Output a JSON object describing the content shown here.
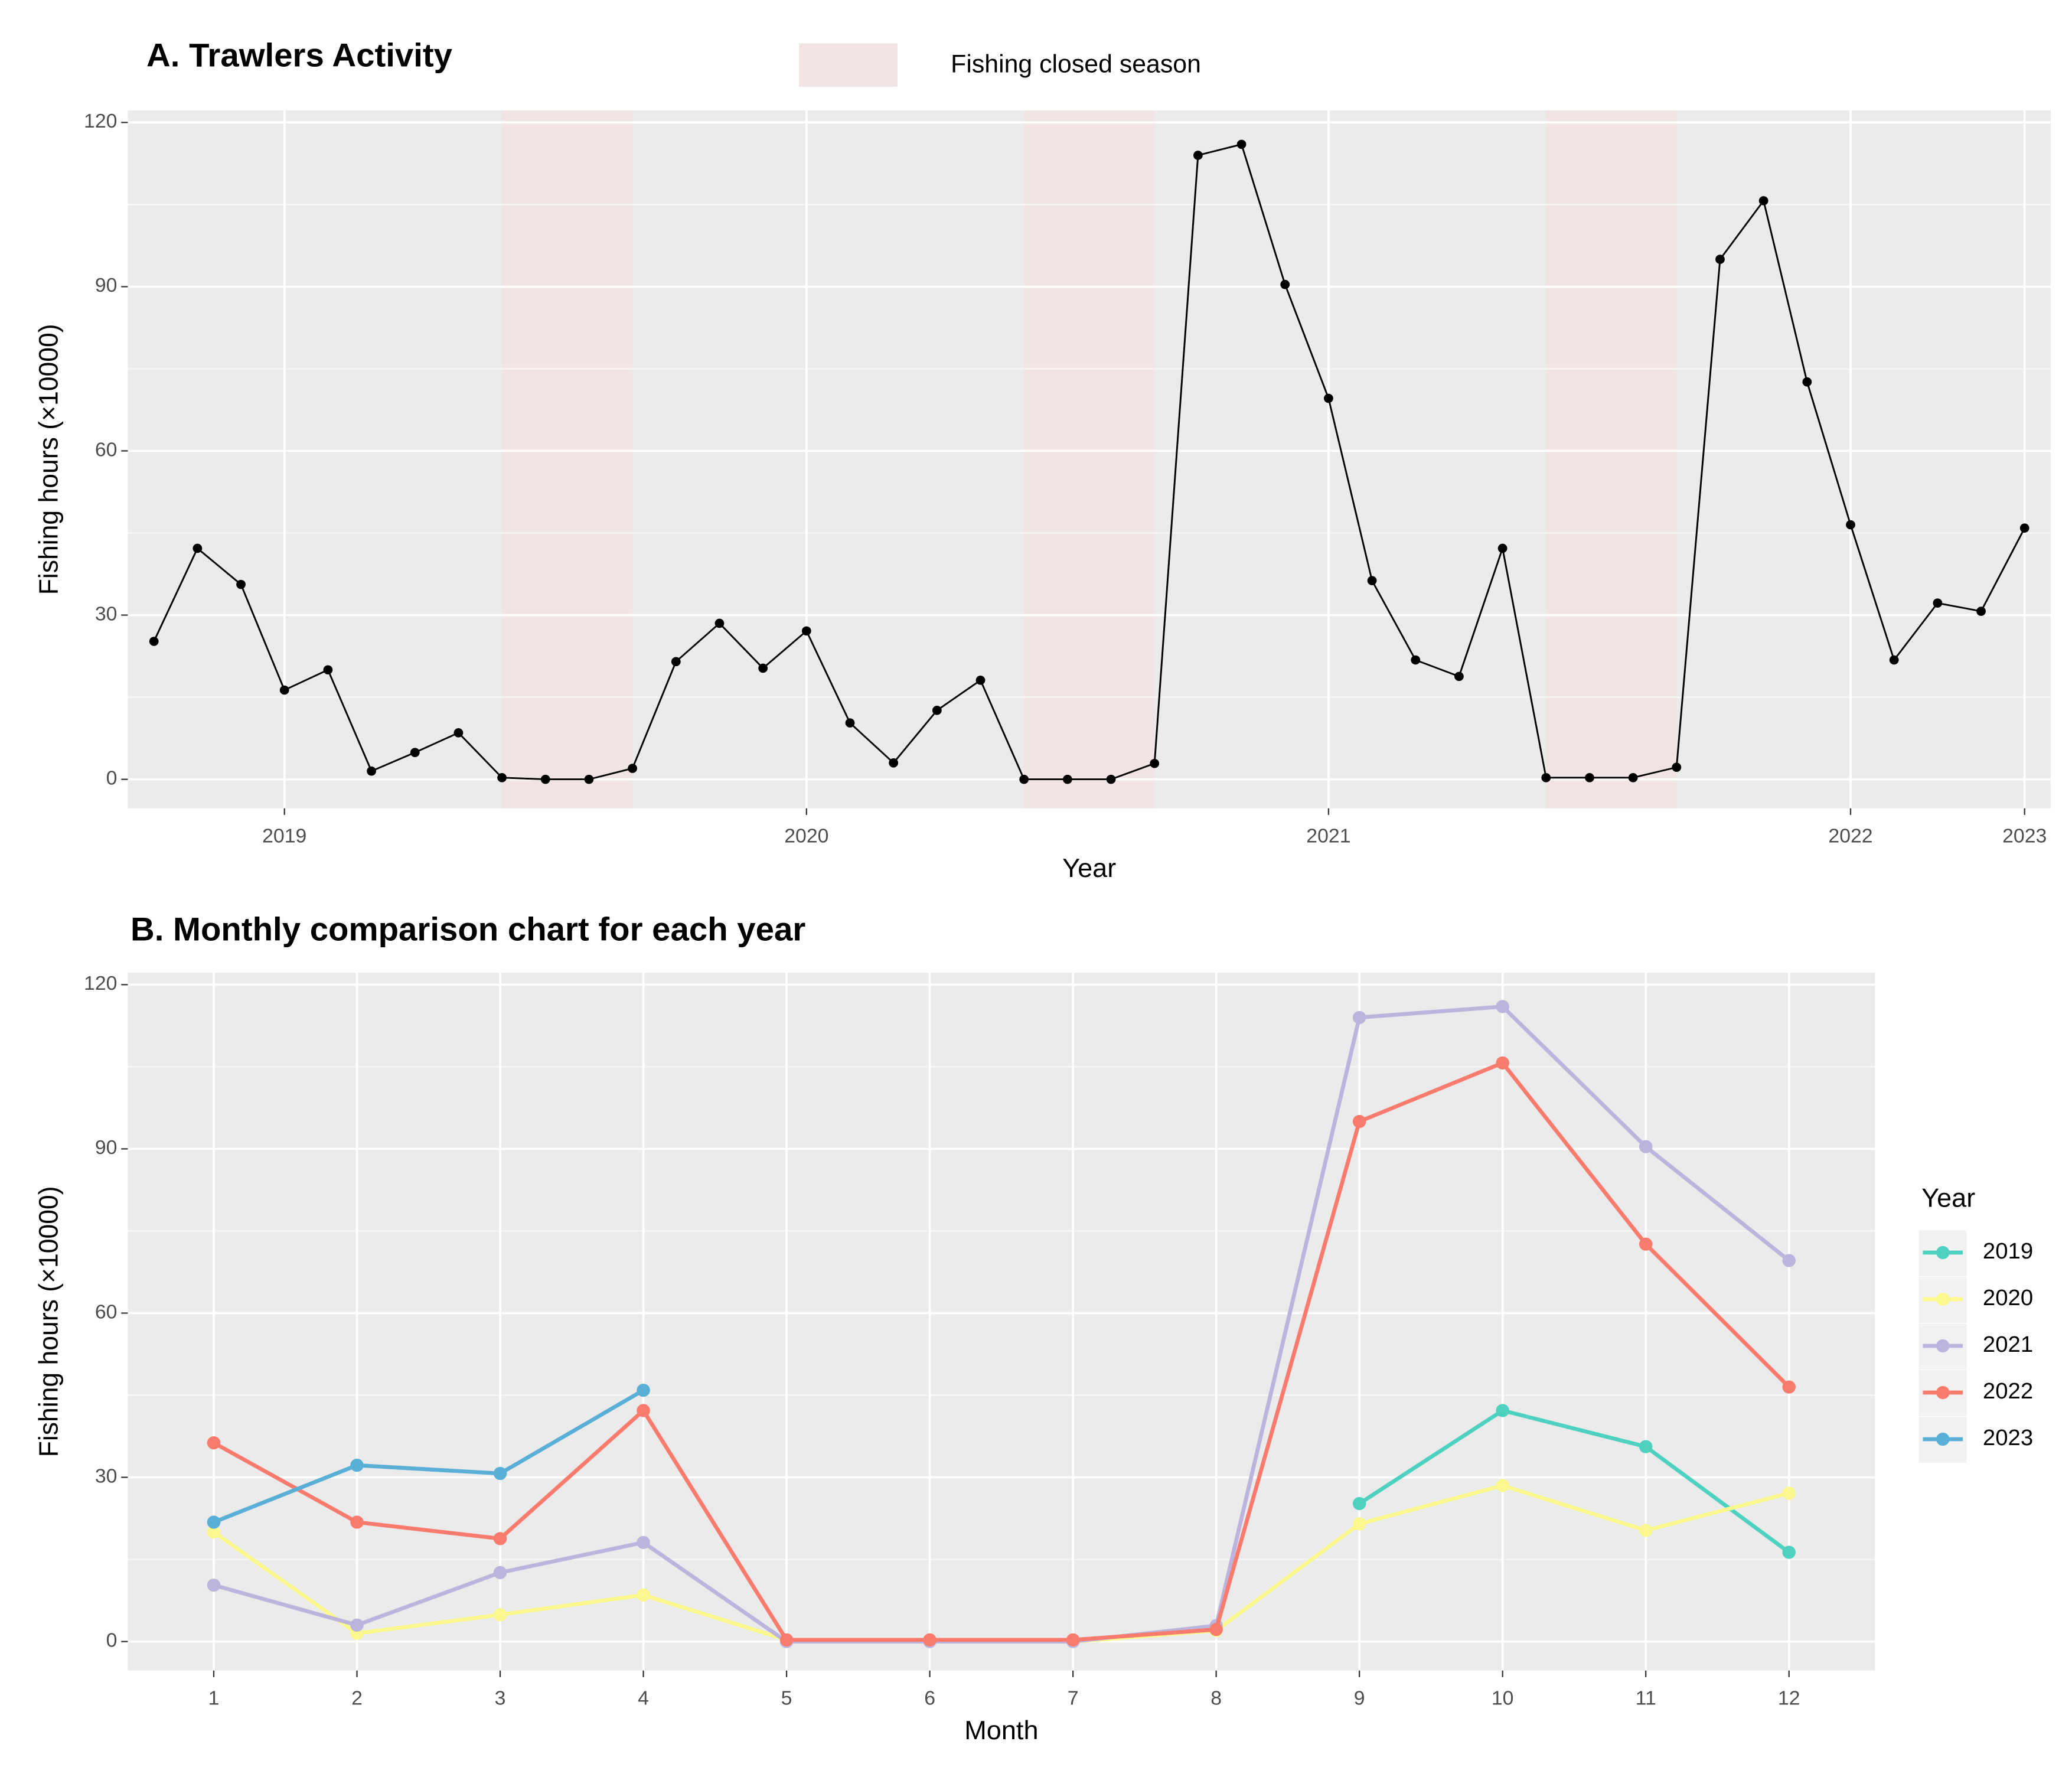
{
  "chart_data": [
    {
      "type": "line",
      "title": "A. Trawlers Activity",
      "xlabel": "Year",
      "ylabel": "Fishing hours (×10000)",
      "categories": [
        null,
        null,
        null,
        "2019",
        null,
        null,
        null,
        null,
        null,
        null,
        null,
        null,
        null,
        null,
        null,
        "2020",
        null,
        null,
        null,
        null,
        null,
        null,
        null,
        null,
        null,
        null,
        null,
        "2021",
        null,
        null,
        null,
        null,
        null,
        null,
        null,
        null,
        null,
        null,
        null,
        "2022",
        null,
        null,
        null,
        "2023"
      ],
      "values": [
        25.2,
        42.2,
        35.6,
        16.3,
        20.0,
        1.5,
        4.9,
        8.5,
        0.3,
        0.0,
        0.0,
        2.0,
        21.5,
        28.5,
        20.3,
        27.1,
        10.3,
        3.0,
        12.6,
        18.1,
        0.0,
        0.0,
        0.0,
        2.9,
        114.0,
        116.0,
        90.4,
        69.6,
        36.3,
        21.8,
        18.8,
        42.2,
        0.3,
        0.3,
        0.3,
        2.2,
        95.0,
        105.7,
        72.6,
        46.5,
        21.8,
        32.2,
        30.7,
        45.9
      ],
      "color": "#000000",
      "shaded_regions": [
        [
          8,
          11
        ],
        [
          20,
          23
        ],
        [
          32,
          35
        ]
      ],
      "shaded_label": "Fishing closed season",
      "shaded_color": "#f2e4e4",
      "ylim": [
        -5.3,
        122.2
      ],
      "yticks": [
        0,
        30,
        60,
        90,
        120
      ],
      "grid": true
    },
    {
      "type": "line",
      "title": "B. Monthly comparison chart for each year",
      "xlabel": "Month",
      "ylabel": "Fishing hours (×10000)",
      "categories": [
        "1",
        "2",
        "3",
        "4",
        "5",
        "6",
        "7",
        "8",
        "9",
        "10",
        "11",
        "12"
      ],
      "series": [
        {
          "name": "2019",
          "color": "#4fd1c0",
          "values": [
            null,
            null,
            null,
            null,
            null,
            null,
            null,
            null,
            25.2,
            42.2,
            35.6,
            16.3
          ]
        },
        {
          "name": "2020",
          "color": "#fbf88f",
          "values": [
            20.0,
            1.5,
            4.9,
            8.5,
            0.3,
            0.0,
            0.0,
            2.0,
            21.5,
            28.5,
            20.3,
            27.1
          ]
        },
        {
          "name": "2021",
          "color": "#bcb4dc",
          "values": [
            10.3,
            3.0,
            12.6,
            18.1,
            0.0,
            0.0,
            0.0,
            2.9,
            114.0,
            116.0,
            90.4,
            69.6
          ]
        },
        {
          "name": "2022",
          "color": "#f97b6d",
          "values": [
            36.3,
            21.8,
            18.8,
            42.2,
            0.3,
            0.3,
            0.3,
            2.2,
            95.0,
            105.7,
            72.6,
            46.5
          ]
        },
        {
          "name": "2023",
          "color": "#5aafd6",
          "values": [
            21.8,
            32.2,
            30.7,
            45.9,
            null,
            null,
            null,
            null,
            null,
            null,
            null,
            null
          ]
        }
      ],
      "legend_title": "Year",
      "legend": "right",
      "ylim": [
        -5.3,
        122.2
      ],
      "yticks": [
        0,
        30,
        60,
        90,
        120
      ],
      "grid": true
    }
  ]
}
